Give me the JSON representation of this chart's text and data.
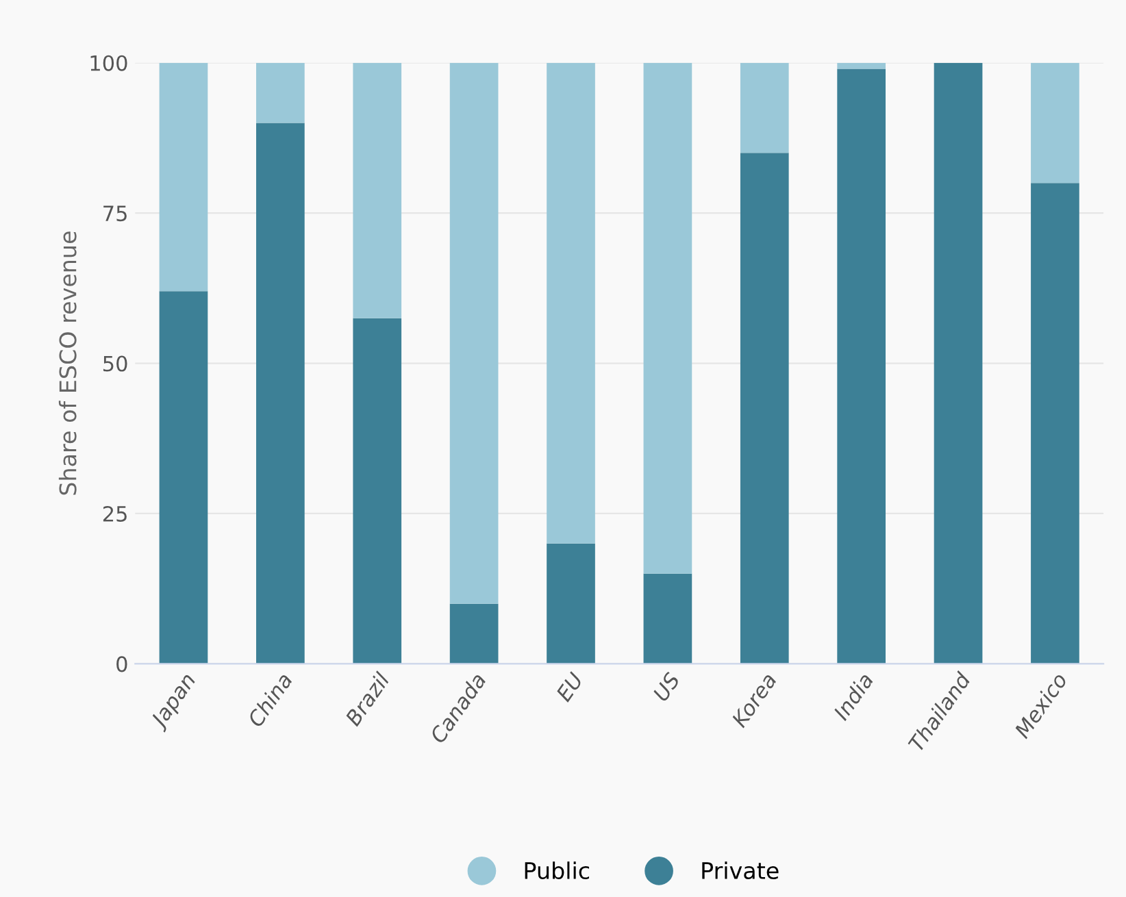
{
  "chart_data": {
    "type": "bar",
    "stacked": true,
    "ylabel": "Share of ESCO revenue",
    "categories": [
      "Japan",
      "China",
      "Brazil",
      "Canada",
      "EU",
      "US",
      "Korea",
      "India",
      "Thailand",
      "Mexico"
    ],
    "series": [
      {
        "name": "Private",
        "color": "#3d8096",
        "values": [
          62,
          90,
          57.5,
          10,
          20,
          15,
          85,
          99,
          100,
          80
        ]
      },
      {
        "name": "Public",
        "color": "#9ac8d8",
        "values": [
          38,
          10,
          42.5,
          90,
          80,
          85,
          15,
          1,
          0,
          20
        ]
      }
    ],
    "ylim": [
      0,
      100
    ],
    "yticks": [
      0,
      25,
      50,
      75,
      100
    ],
    "grid": "y",
    "legend": "bottom"
  }
}
